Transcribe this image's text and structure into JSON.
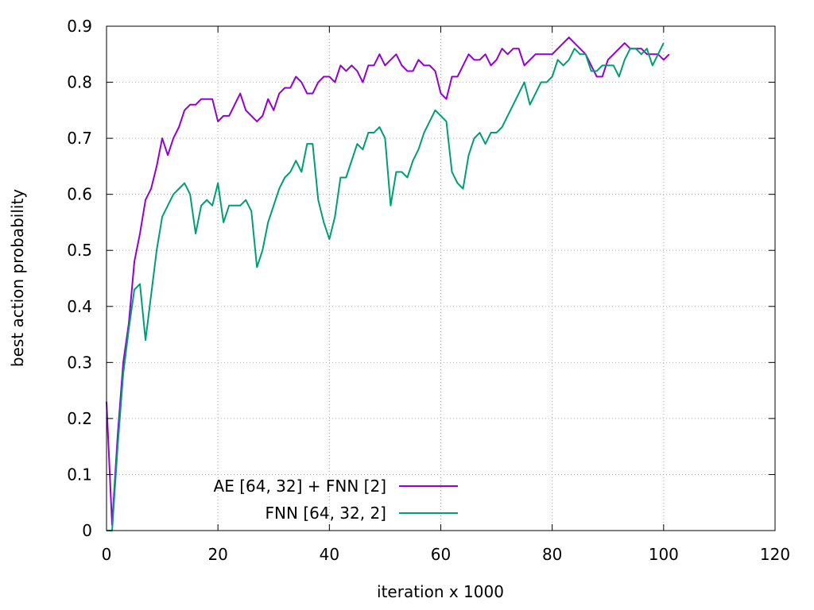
{
  "chart_data": {
    "type": "line",
    "title": "",
    "xlabel": "iteration x 1000",
    "ylabel": "best action probability",
    "xlim": [
      0,
      120
    ],
    "ylim": [
      0,
      0.9
    ],
    "x_ticks": [
      "0",
      "20",
      "40",
      "60",
      "80",
      "100",
      "120"
    ],
    "y_ticks": [
      "0",
      "0.1",
      "0.2",
      "0.3",
      "0.4",
      "0.5",
      "0.6",
      "0.7",
      "0.8",
      "0.9"
    ],
    "grid": true,
    "legend_position": "bottom-left",
    "x": [
      0,
      1,
      2,
      3,
      4,
      5,
      6,
      7,
      8,
      9,
      10,
      11,
      12,
      13,
      14,
      15,
      16,
      17,
      18,
      19,
      20,
      21,
      22,
      23,
      24,
      25,
      26,
      27,
      28,
      29,
      30,
      31,
      32,
      33,
      34,
      35,
      36,
      37,
      38,
      39,
      40,
      41,
      42,
      43,
      44,
      45,
      46,
      47,
      48,
      49,
      50,
      51,
      52,
      53,
      54,
      55,
      56,
      57,
      58,
      59,
      60,
      61,
      62,
      63,
      64,
      65,
      66,
      67,
      68,
      69,
      70,
      71,
      72,
      73,
      74,
      75,
      76,
      77,
      78,
      79,
      80,
      81,
      82,
      83,
      84,
      85,
      86,
      87,
      88,
      89,
      90,
      91,
      92,
      93,
      94,
      95,
      96,
      97,
      98,
      99,
      100,
      101
    ],
    "series": [
      {
        "name": "AE [64, 32] + FNN [2]",
        "color": "#9400d3",
        "values": [
          0.23,
          0.01,
          0.17,
          0.3,
          0.37,
          0.48,
          0.53,
          0.59,
          0.61,
          0.65,
          0.7,
          0.67,
          0.7,
          0.72,
          0.75,
          0.76,
          0.76,
          0.77,
          0.77,
          0.77,
          0.73,
          0.74,
          0.74,
          0.76,
          0.78,
          0.75,
          0.74,
          0.73,
          0.74,
          0.77,
          0.75,
          0.78,
          0.79,
          0.79,
          0.81,
          0.8,
          0.78,
          0.78,
          0.8,
          0.81,
          0.81,
          0.8,
          0.83,
          0.82,
          0.83,
          0.82,
          0.8,
          0.83,
          0.83,
          0.85,
          0.83,
          0.84,
          0.85,
          0.83,
          0.82,
          0.82,
          0.84,
          0.83,
          0.83,
          0.82,
          0.78,
          0.77,
          0.81,
          0.81,
          0.83,
          0.85,
          0.84,
          0.84,
          0.85,
          0.83,
          0.84,
          0.86,
          0.85,
          0.86,
          0.86,
          0.83,
          0.84,
          0.85,
          0.85,
          0.85,
          0.85,
          0.86,
          0.87,
          0.88,
          0.87,
          0.86,
          0.85,
          0.83,
          0.81,
          0.81,
          0.84,
          0.85,
          0.86,
          0.87,
          0.86,
          0.86,
          0.86,
          0.85,
          0.85,
          0.85,
          0.84,
          0.85
        ]
      },
      {
        "name": "FNN [64, 32, 2]",
        "color": "#009e73",
        "values": [
          0.0,
          0.0,
          0.15,
          0.28,
          0.36,
          0.43,
          0.44,
          0.34,
          0.42,
          0.5,
          0.56,
          0.58,
          0.6,
          0.61,
          0.62,
          0.6,
          0.53,
          0.58,
          0.59,
          0.58,
          0.62,
          0.55,
          0.58,
          0.58,
          0.58,
          0.59,
          0.57,
          0.47,
          0.5,
          0.55,
          0.58,
          0.61,
          0.63,
          0.64,
          0.66,
          0.64,
          0.69,
          0.69,
          0.59,
          0.55,
          0.52,
          0.56,
          0.63,
          0.63,
          0.66,
          0.69,
          0.68,
          0.71,
          0.71,
          0.72,
          0.7,
          0.58,
          0.64,
          0.64,
          0.63,
          0.66,
          0.68,
          0.71,
          0.73,
          0.75,
          0.74,
          0.73,
          0.64,
          0.62,
          0.61,
          0.67,
          0.7,
          0.71,
          0.69,
          0.71,
          0.71,
          0.72,
          0.74,
          0.76,
          0.78,
          0.8,
          0.76,
          0.78,
          0.8,
          0.8,
          0.81,
          0.84,
          0.83,
          0.84,
          0.86,
          0.85,
          0.85,
          0.82,
          0.82,
          0.83,
          0.83,
          0.83,
          0.81,
          0.84,
          0.86,
          0.86,
          0.85,
          0.86,
          0.83,
          0.85,
          0.87,
          null
        ]
      }
    ]
  }
}
